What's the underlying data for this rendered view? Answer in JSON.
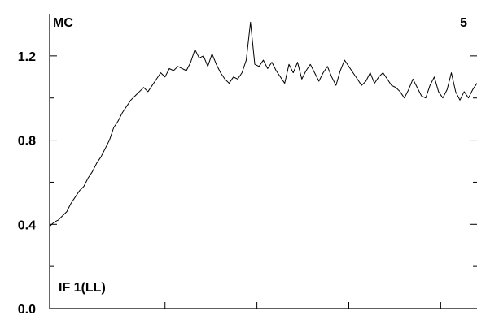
{
  "chart_data": {
    "type": "line",
    "title": "",
    "subtitle": "",
    "xlabel": "",
    "ylabel": "",
    "ylim": [
      0.0,
      1.4
    ],
    "xlim": [
      0,
      100
    ],
    "y_ticks": [
      0.0,
      0.4,
      0.8,
      1.2
    ],
    "y_tick_labels": [
      "0.0",
      "0.4",
      "0.8",
      "1.2"
    ],
    "y_minor_ticks": [
      0.2,
      0.6,
      1.0
    ],
    "x_minor_ticks": [
      27,
      48.5,
      70,
      91.5
    ],
    "grid": false,
    "legend": "none",
    "annotations": {
      "top_left": "MC",
      "top_right": "5",
      "bottom_left": "IF 1(LL)"
    },
    "series": [
      {
        "color": "#000000",
        "x": [
          0,
          1,
          2,
          3,
          4,
          5,
          6,
          7,
          8,
          9,
          10,
          11,
          12,
          13,
          14,
          15,
          16,
          17,
          18,
          19,
          20,
          21,
          22,
          23,
          24,
          25,
          26,
          27,
          28,
          29,
          30,
          31,
          32,
          33,
          34,
          35,
          36,
          37,
          38,
          39,
          40,
          41,
          42,
          43,
          44,
          45,
          46,
          47,
          48,
          49,
          50,
          51,
          52,
          53,
          54,
          55,
          56,
          57,
          58,
          59,
          60,
          61,
          62,
          63,
          64,
          65,
          66,
          67,
          68,
          69,
          70,
          71,
          72,
          73,
          74,
          75,
          76,
          77,
          78,
          79,
          80,
          81,
          82,
          83,
          84,
          85,
          86,
          87,
          88,
          89,
          90,
          91,
          92,
          93,
          94,
          95,
          96,
          97,
          98,
          99,
          100
        ],
        "y": [
          0.39,
          0.41,
          0.42,
          0.44,
          0.46,
          0.5,
          0.53,
          0.56,
          0.58,
          0.62,
          0.65,
          0.69,
          0.72,
          0.76,
          0.8,
          0.86,
          0.89,
          0.93,
          0.96,
          0.99,
          1.01,
          1.03,
          1.05,
          1.03,
          1.06,
          1.09,
          1.12,
          1.1,
          1.14,
          1.13,
          1.15,
          1.14,
          1.13,
          1.17,
          1.23,
          1.19,
          1.2,
          1.15,
          1.21,
          1.16,
          1.12,
          1.09,
          1.07,
          1.1,
          1.09,
          1.12,
          1.18,
          1.36,
          1.16,
          1.15,
          1.18,
          1.14,
          1.17,
          1.13,
          1.1,
          1.07,
          1.16,
          1.12,
          1.17,
          1.09,
          1.13,
          1.16,
          1.12,
          1.08,
          1.12,
          1.15,
          1.1,
          1.06,
          1.13,
          1.18,
          1.15,
          1.12,
          1.09,
          1.06,
          1.08,
          1.12,
          1.07,
          1.1,
          1.12,
          1.09,
          1.06,
          1.05,
          1.03,
          1.0,
          1.04,
          1.09,
          1.05,
          1.01,
          1.0,
          1.06,
          1.1,
          1.03,
          1.0,
          1.04,
          1.12,
          1.03,
          0.99,
          1.03,
          1.0,
          1.04,
          1.07
        ]
      }
    ]
  }
}
